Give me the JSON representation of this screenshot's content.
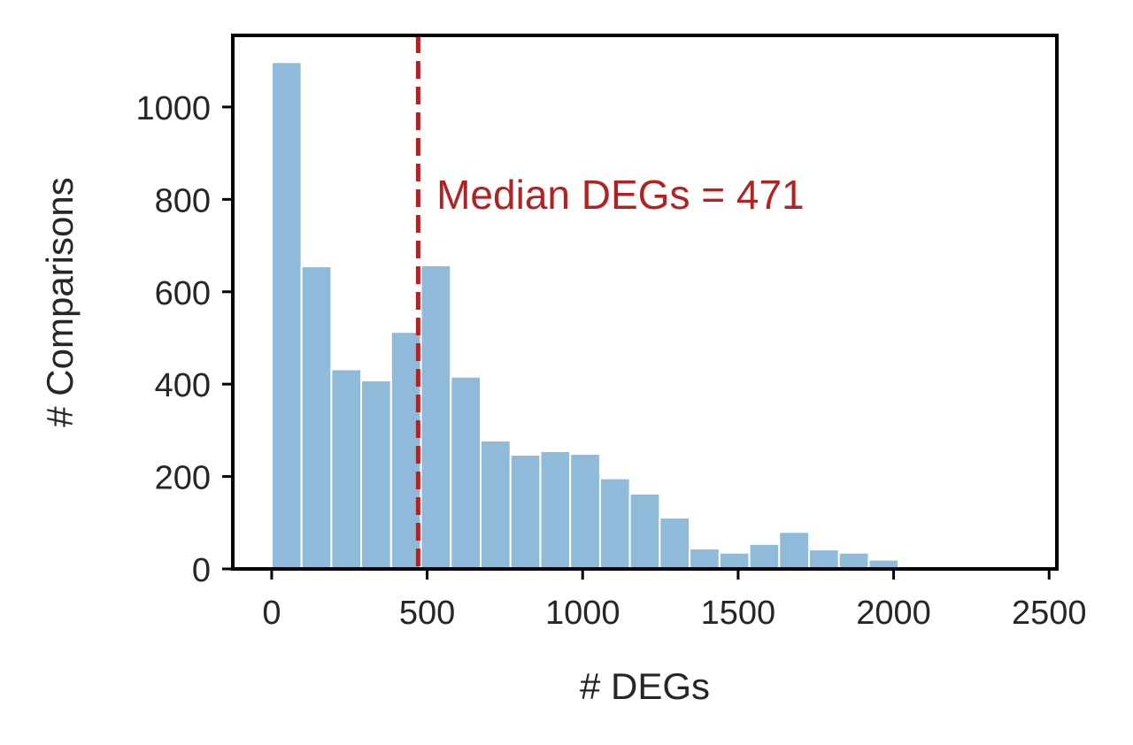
{
  "chart_data": {
    "type": "bar",
    "title": "",
    "xlabel": "# DEGs",
    "ylabel": "# Comparisons",
    "xlim": [
      -125,
      2525
    ],
    "ylim": [
      0,
      1155
    ],
    "xticks": [
      0,
      500,
      1000,
      1500,
      2000,
      2500
    ],
    "xtick_labels": [
      "0",
      "500",
      "1000",
      "1500",
      "2000",
      "2500"
    ],
    "yticks": [
      0,
      200,
      400,
      600,
      800,
      1000
    ],
    "ytick_labels": [
      "0",
      "200",
      "400",
      "600",
      "800",
      "1000"
    ],
    "bin_width": 96,
    "bins": [
      {
        "x0": 0,
        "x1": 96,
        "count": 1097
      },
      {
        "x0": 96,
        "x1": 192,
        "count": 655
      },
      {
        "x0": 192,
        "x1": 288,
        "count": 432
      },
      {
        "x0": 288,
        "x1": 384,
        "count": 408
      },
      {
        "x0": 384,
        "x1": 480,
        "count": 513
      },
      {
        "x0": 480,
        "x1": 576,
        "count": 657
      },
      {
        "x0": 576,
        "x1": 672,
        "count": 416
      },
      {
        "x0": 672,
        "x1": 768,
        "count": 278
      },
      {
        "x0": 768,
        "x1": 864,
        "count": 247
      },
      {
        "x0": 864,
        "x1": 960,
        "count": 255
      },
      {
        "x0": 960,
        "x1": 1056,
        "count": 249
      },
      {
        "x0": 1056,
        "x1": 1152,
        "count": 196
      },
      {
        "x0": 1152,
        "x1": 1248,
        "count": 163
      },
      {
        "x0": 1248,
        "x1": 1344,
        "count": 111
      },
      {
        "x0": 1344,
        "x1": 1440,
        "count": 44
      },
      {
        "x0": 1440,
        "x1": 1536,
        "count": 35
      },
      {
        "x0": 1536,
        "x1": 1632,
        "count": 54
      },
      {
        "x0": 1632,
        "x1": 1728,
        "count": 80
      },
      {
        "x0": 1728,
        "x1": 1824,
        "count": 42
      },
      {
        "x0": 1824,
        "x1": 1920,
        "count": 35
      },
      {
        "x0": 1920,
        "x1": 2016,
        "count": 20
      },
      {
        "x0": 2016,
        "x1": 2112,
        "count": 4
      },
      {
        "x0": 2112,
        "x1": 2208,
        "count": 2
      },
      {
        "x0": 2208,
        "x1": 2304,
        "count": 1
      },
      {
        "x0": 2304,
        "x1": 2400,
        "count": 3
      }
    ],
    "bar_color": "#8fbad9",
    "median_line": {
      "x": 471,
      "color": "#b22222",
      "style": "dashed"
    },
    "annotation": {
      "text": "Median DEGs = 471",
      "x": 530,
      "y": 780,
      "color": "#b22222"
    },
    "grid": false,
    "legend": false
  }
}
